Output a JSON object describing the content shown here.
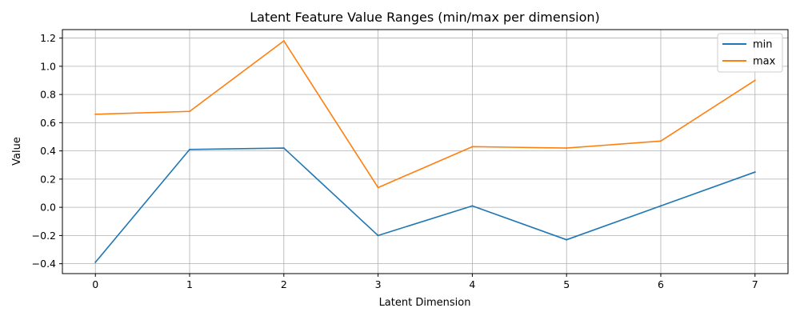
{
  "chart_data": {
    "type": "line",
    "title": "Latent Feature Value Ranges (min/max per dimension)",
    "xlabel": "Latent Dimension",
    "ylabel": "Value",
    "x": [
      0,
      1,
      2,
      3,
      4,
      5,
      6,
      7
    ],
    "xticks": [
      "0",
      "1",
      "2",
      "3",
      "4",
      "5",
      "6",
      "7"
    ],
    "yticks": [
      "−0.4",
      "−0.2",
      "0.0",
      "0.2",
      "0.4",
      "0.6",
      "0.8",
      "1.0",
      "1.2"
    ],
    "ytick_values": [
      -0.4,
      -0.2,
      0.0,
      0.2,
      0.4,
      0.6,
      0.8,
      1.0,
      1.2
    ],
    "xlim": [
      -0.35,
      7.35
    ],
    "ylim": [
      -0.47,
      1.26
    ],
    "grid": true,
    "legend_position": "top-right",
    "series": [
      {
        "name": "min",
        "color": "#1f77b4",
        "values": [
          -0.39,
          0.41,
          0.42,
          -0.2,
          0.01,
          -0.23,
          0.01,
          0.25
        ]
      },
      {
        "name": "max",
        "color": "#ff7f0e",
        "values": [
          0.66,
          0.68,
          1.18,
          0.14,
          0.43,
          0.42,
          0.47,
          0.9
        ]
      }
    ]
  }
}
